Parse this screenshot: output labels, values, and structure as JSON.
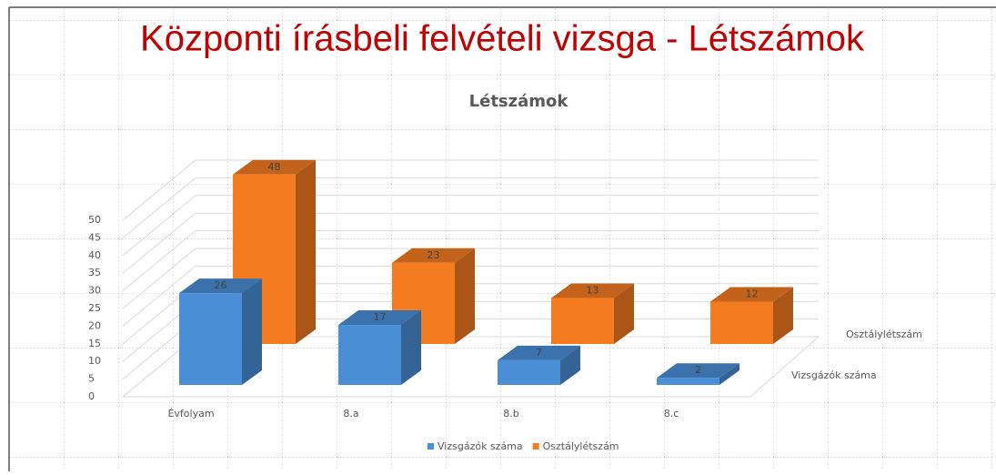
{
  "chart_data": {
    "type": "bar3d",
    "slide_title": "Központi írásbeli felvételi vizsga - Létszámok",
    "title": "Létszámok",
    "categories": [
      "Évfolyam",
      "8.a",
      "8.b",
      "8.c"
    ],
    "series": [
      {
        "name": "Vizsgázók száma",
        "color": "#4a8fd6",
        "values": [
          26,
          17,
          7,
          2
        ]
      },
      {
        "name": "Osztálylétszám",
        "color": "#f47b20",
        "values": [
          48,
          23,
          13,
          12
        ]
      }
    ],
    "ylim": [
      0,
      50
    ],
    "yticks": [
      0,
      5,
      10,
      15,
      20,
      25,
      30,
      35,
      40,
      45,
      50
    ],
    "grid": true,
    "legend": "bottom"
  }
}
